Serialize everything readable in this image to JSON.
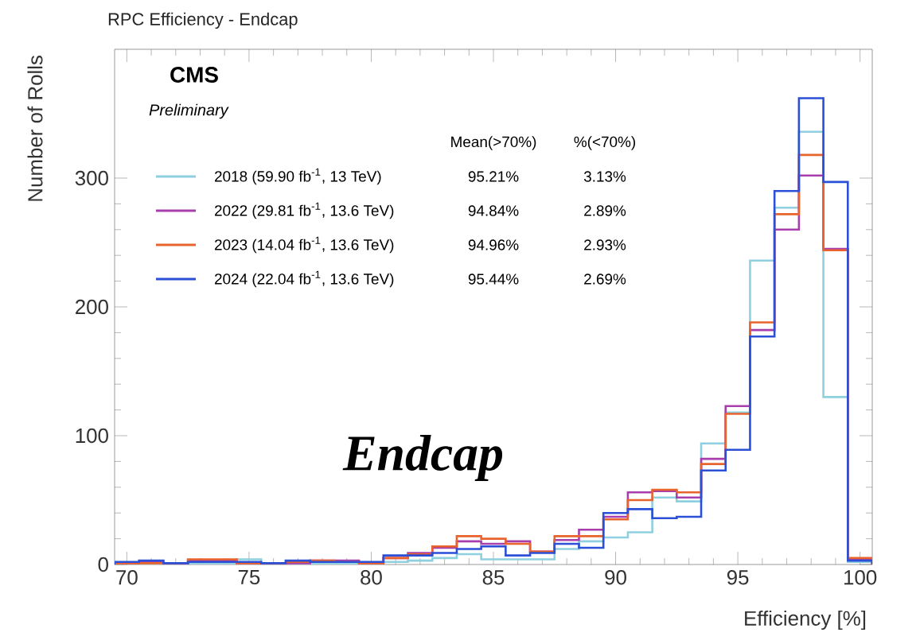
{
  "chart_data": {
    "type": "histogram",
    "title": "RPC Efficiency - Endcap",
    "xlabel": "Efficiency [%]",
    "ylabel": "Number of Rolls",
    "bins": [
      69.5,
      70.5,
      71.5,
      72.5,
      73.5,
      74.5,
      75.5,
      76.5,
      77.5,
      78.5,
      79.5,
      80.5,
      81.5,
      82.5,
      83.5,
      84.5,
      85.5,
      86.5,
      87.5,
      88.5,
      89.5,
      90.5,
      91.5,
      92.5,
      93.5,
      94.5,
      95.5,
      96.5,
      97.5,
      98.5,
      99.5,
      100.5
    ],
    "series": [
      {
        "name": "2018 (59.90 fb$^{-1}$, 13 TeV)",
        "color": "#8ecfe0",
        "values": [
          1,
          1,
          1,
          1,
          1,
          4,
          1,
          1,
          1,
          1,
          1,
          2,
          3,
          5,
          8,
          4,
          4,
          4,
          12,
          18,
          21,
          25,
          52,
          49,
          94,
          118,
          236,
          277,
          336,
          130,
          2
        ]
      },
      {
        "name": "2022 (29.81 fb$^{-1}$, 13.6 TeV)",
        "color": "#a83dad",
        "values": [
          1,
          2,
          1,
          3,
          3,
          1,
          1,
          1,
          3,
          3,
          1,
          5,
          9,
          13,
          18,
          16,
          18,
          10,
          19,
          27,
          37,
          56,
          57,
          52,
          82,
          123,
          182,
          260,
          302,
          245,
          4
        ]
      },
      {
        "name": "2023 (14.04 fb$^{-1}$, 13.6 TeV)",
        "color": "#e8642c",
        "values": [
          1,
          1,
          1,
          4,
          4,
          1,
          1,
          2,
          3,
          2,
          1,
          5,
          8,
          14,
          22,
          20,
          16,
          10,
          22,
          22,
          35,
          50,
          58,
          56,
          78,
          117,
          188,
          272,
          318,
          244,
          5
        ]
      },
      {
        "name": "2024 (22.04 fb$^{-1}$, 13.6 TeV)",
        "color": "#2b4fd6",
        "values": [
          2,
          3,
          1,
          2,
          2,
          2,
          1,
          3,
          2,
          2,
          2,
          7,
          7,
          9,
          12,
          14,
          7,
          9,
          16,
          13,
          40,
          43,
          36,
          37,
          73,
          89,
          177,
          290,
          362,
          297,
          3
        ]
      }
    ],
    "xlim": [
      69.5,
      100.5
    ],
    "ylim": [
      0,
      400
    ],
    "xticks": [
      70,
      75,
      80,
      85,
      90,
      95,
      100
    ],
    "yticks": [
      0,
      100,
      200,
      300
    ],
    "legend": "top left",
    "grid": false,
    "annotations": [
      "CMS",
      "Preliminary",
      "Endcap",
      "Mean(>70%)",
      "%(<70%)",
      "95.21%",
      "3.13%",
      "94.84%",
      "2.89%",
      "94.96%",
      "2.93%",
      "95.44%",
      "2.69%"
    ]
  }
}
